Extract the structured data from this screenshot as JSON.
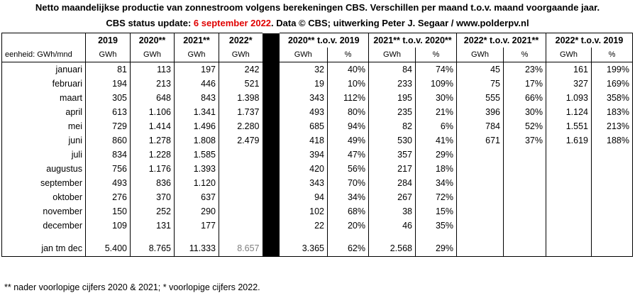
{
  "title": "Netto maandelijkse productie van zonnestroom volgens berekeningen CBS. Verschillen per maand t.o.v. maand voorgaande jaar.",
  "status": {
    "prefix": "CBS status update: ",
    "date": "6 september 2022",
    "suffix": ". Data © CBS; uitwerking Peter J. Segaar / www.polderpv.nl"
  },
  "header": {
    "col_years": [
      "2019",
      "2020**",
      "2021**",
      "2022*"
    ],
    "col_diffs": [
      "2020** t.o.v. 2019",
      "2021** t.o.v. 2020**",
      "2022* t.o.v. 2021**",
      "2022* t.o.v. 2019"
    ],
    "unit_label": "eenheid: GWh/mnd",
    "unit_gwh": "GWh",
    "unit_pct": "%"
  },
  "rows": [
    {
      "month": "januari",
      "v2019": "81",
      "v2020": "113",
      "v2021": "197",
      "v2022": "242",
      "d1": "32",
      "p1": "40%",
      "d2": "84",
      "p2": "74%",
      "d3": "45",
      "p3": "23%",
      "d4": "161",
      "p4": "199%"
    },
    {
      "month": "februari",
      "v2019": "194",
      "v2020": "213",
      "v2021": "446",
      "v2022": "521",
      "d1": "19",
      "p1": "10%",
      "d2": "233",
      "p2": "109%",
      "d3": "75",
      "p3": "17%",
      "d4": "327",
      "p4": "169%"
    },
    {
      "month": "maart",
      "v2019": "305",
      "v2020": "648",
      "v2021": "843",
      "v2022": "1.398",
      "d1": "343",
      "p1": "112%",
      "d2": "195",
      "p2": "30%",
      "d3": "555",
      "p3": "66%",
      "d4": "1.093",
      "p4": "358%"
    },
    {
      "month": "april",
      "v2019": "613",
      "v2020": "1.106",
      "v2021": "1.341",
      "v2022": "1.737",
      "d1": "493",
      "p1": "80%",
      "d2": "235",
      "p2": "21%",
      "d3": "396",
      "p3": "30%",
      "d4": "1.124",
      "p4": "183%"
    },
    {
      "month": "mei",
      "v2019": "729",
      "v2020": "1.414",
      "v2021": "1.496",
      "v2022": "2.280",
      "d1": "685",
      "p1": "94%",
      "d2": "82",
      "p2": "6%",
      "d3": "784",
      "p3": "52%",
      "d4": "1.551",
      "p4": "213%"
    },
    {
      "month": "juni",
      "v2019": "860",
      "v2020": "1.278",
      "v2021": "1.808",
      "v2022": "2.479",
      "d1": "418",
      "p1": "49%",
      "d2": "530",
      "p2": "41%",
      "d3": "671",
      "p3": "37%",
      "d4": "1.619",
      "p4": "188%"
    },
    {
      "month": "juli",
      "v2019": "834",
      "v2020": "1.228",
      "v2021": "1.585",
      "v2022": "",
      "d1": "394",
      "p1": "47%",
      "d2": "357",
      "p2": "29%",
      "d3": "",
      "p3": "",
      "d4": "",
      "p4": ""
    },
    {
      "month": "augustus",
      "v2019": "756",
      "v2020": "1.176",
      "v2021": "1.393",
      "v2022": "",
      "d1": "420",
      "p1": "56%",
      "d2": "217",
      "p2": "18%",
      "d3": "",
      "p3": "",
      "d4": "",
      "p4": ""
    },
    {
      "month": "september",
      "v2019": "493",
      "v2020": "836",
      "v2021": "1.120",
      "v2022": "",
      "d1": "343",
      "p1": "70%",
      "d2": "284",
      "p2": "34%",
      "d3": "",
      "p3": "",
      "d4": "",
      "p4": ""
    },
    {
      "month": "oktober",
      "v2019": "276",
      "v2020": "370",
      "v2021": "637",
      "v2022": "",
      "d1": "94",
      "p1": "34%",
      "d2": "267",
      "p2": "72%",
      "d3": "",
      "p3": "",
      "d4": "",
      "p4": ""
    },
    {
      "month": "november",
      "v2019": "150",
      "v2020": "252",
      "v2021": "290",
      "v2022": "",
      "d1": "102",
      "p1": "68%",
      "d2": "38",
      "p2": "15%",
      "d3": "",
      "p3": "",
      "d4": "",
      "p4": ""
    },
    {
      "month": "december",
      "v2019": "109",
      "v2020": "131",
      "v2021": "177",
      "v2022": "",
      "d1": "22",
      "p1": "20%",
      "d2": "46",
      "p2": "35%",
      "d3": "",
      "p3": "",
      "d4": "",
      "p4": ""
    }
  ],
  "total": {
    "month": "jan tm dec",
    "v2019": "5.400",
    "v2020": "8.765",
    "v2021": "11.333",
    "v2022": "8.657",
    "d1": "3.365",
    "p1": "62%",
    "d2": "2.568",
    "p2": "29%"
  },
  "footnote": "** nader voorlopige cijfers 2020 & 2021; * voorlopige cijfers 2022.",
  "colors": {
    "date_highlight": "#e00000",
    "separator": "#000000",
    "partial_total": "#7f7f7f"
  }
}
